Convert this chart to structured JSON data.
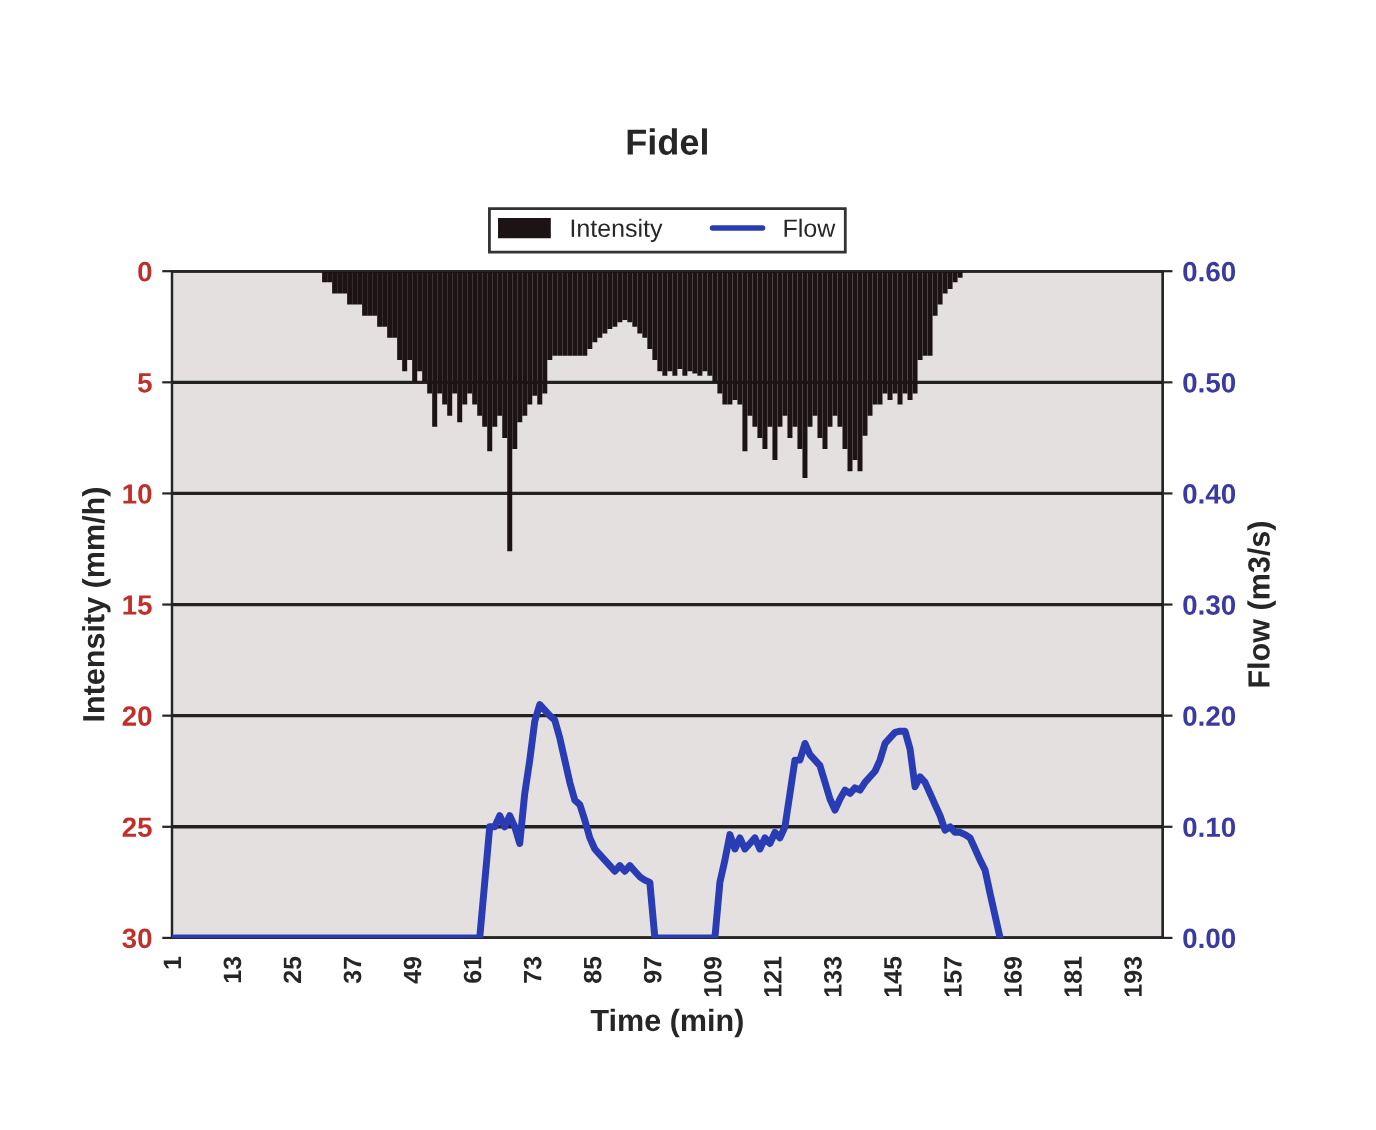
{
  "chart_data": {
    "type": "bar",
    "title": "Fidel",
    "xlabel": "Time (min)",
    "ylabel": "Intensity (mm/h)",
    "y2label": "Flow (m3/s)",
    "categories": [
      "1",
      null,
      null,
      null,
      null,
      null,
      null,
      null,
      null,
      null,
      null,
      null,
      "13",
      null,
      null,
      null,
      null,
      null,
      null,
      null,
      null,
      null,
      null,
      null,
      "25",
      null,
      null,
      null,
      null,
      null,
      null,
      null,
      null,
      null,
      null,
      null,
      "37",
      null,
      null,
      null,
      null,
      null,
      null,
      null,
      null,
      null,
      null,
      null,
      "49",
      null,
      null,
      null,
      null,
      null,
      null,
      null,
      null,
      null,
      null,
      null,
      "61",
      null,
      null,
      null,
      null,
      null,
      null,
      null,
      null,
      null,
      null,
      null,
      "73",
      null,
      null,
      null,
      null,
      null,
      null,
      null,
      null,
      null,
      null,
      null,
      "85",
      null,
      null,
      null,
      null,
      null,
      null,
      null,
      null,
      null,
      null,
      null,
      "97",
      null,
      null,
      null,
      null,
      null,
      null,
      null,
      null,
      null,
      null,
      null,
      "109",
      null,
      null,
      null,
      null,
      null,
      null,
      null,
      null,
      null,
      null,
      null,
      "121",
      null,
      null,
      null,
      null,
      null,
      null,
      null,
      null,
      null,
      null,
      null,
      "133",
      null,
      null,
      null,
      null,
      null,
      null,
      null,
      null,
      null,
      null,
      null,
      "145",
      null,
      null,
      null,
      null,
      null,
      null,
      null,
      null,
      null,
      null,
      null,
      "157",
      null,
      null,
      null,
      null,
      null,
      null,
      null,
      null,
      null,
      null,
      null,
      "169",
      null,
      null,
      null,
      null,
      null,
      null,
      null,
      null,
      null,
      null,
      null,
      "181",
      null,
      null,
      null,
      null,
      null,
      null,
      null,
      null,
      null,
      null,
      null,
      "193",
      null,
      null,
      null,
      null,
      null
    ],
    "series": [
      {
        "name": "Intensity",
        "color": "#1c1414",
        "values": [
          0,
          0,
          0,
          0,
          0,
          0,
          0,
          0,
          0,
          0,
          0,
          0,
          0,
          0,
          0,
          0,
          0,
          0,
          0,
          0,
          0,
          0,
          0,
          0,
          0,
          0,
          0,
          0,
          0,
          0,
          0.5,
          0.5,
          1,
          1,
          1,
          1.5,
          1.5,
          1.5,
          2,
          2,
          2,
          2.5,
          2.5,
          3,
          3,
          4,
          4.5,
          4,
          5,
          4.5,
          5,
          5.5,
          7,
          5.5,
          6,
          6.5,
          5.5,
          6.8,
          6,
          5.5,
          6,
          6.5,
          7,
          8.1,
          7,
          6.5,
          7.5,
          12.6,
          8,
          6.8,
          6.5,
          6,
          5.6,
          6,
          5.5,
          4,
          3.8,
          3.8,
          3.8,
          3.8,
          3.8,
          3.8,
          3.8,
          3.5,
          3.2,
          3,
          2.8,
          2.6,
          2.5,
          2.3,
          2.2,
          2.3,
          2.5,
          2.8,
          3,
          3.5,
          4,
          4.5,
          4.7,
          4.5,
          4.7,
          4.4,
          4.7,
          4.5,
          4.6,
          4.7,
          4.5,
          4.7,
          5,
          5.5,
          6,
          6,
          5.8,
          6,
          8.1,
          6.5,
          7,
          7.5,
          8,
          7,
          8.5,
          7,
          6.5,
          7.5,
          7,
          8,
          9.3,
          7,
          6.5,
          7.5,
          8,
          7,
          6.5,
          7,
          8,
          9,
          8.5,
          9,
          7.4,
          6.5,
          6,
          6,
          5.5,
          5.8,
          5.5,
          6,
          5.5,
          5.8,
          5.5,
          4,
          3.8,
          3.8,
          2,
          1.5,
          1,
          0.8,
          0.5,
          0.3,
          0,
          0,
          0,
          0,
          0,
          0,
          0,
          0,
          0,
          0,
          0,
          0,
          0,
          0,
          0,
          0,
          0,
          0,
          0,
          0,
          0,
          0,
          0,
          0,
          0,
          0,
          0,
          0,
          0,
          0,
          0,
          0,
          0,
          0,
          0,
          0,
          0,
          0,
          0,
          0
        ]
      },
      {
        "name": "Flow",
        "type": "line",
        "axis": "y2",
        "color": "#2a3cb4",
        "values": [
          0,
          0,
          0,
          0,
          0,
          0,
          0,
          0,
          0,
          0,
          0,
          0,
          0,
          0,
          0,
          0,
          0,
          0,
          0,
          0,
          0,
          0,
          0,
          0,
          0,
          0,
          0,
          0,
          0,
          0,
          0,
          0,
          0,
          0,
          0,
          0,
          0,
          0,
          0,
          0,
          0,
          0,
          0,
          0,
          0,
          0,
          0,
          0,
          0,
          0,
          0,
          0,
          0,
          0,
          0,
          0,
          0,
          0,
          0,
          0,
          0,
          0,
          0.05,
          0.1,
          0.1,
          0.11,
          0.1,
          0.11,
          0.1,
          0.085,
          0.13,
          0.16,
          0.195,
          0.21,
          0.205,
          0.2,
          0.196,
          0.18,
          0.16,
          0.14,
          0.124,
          0.12,
          0.106,
          0.09,
          0.08,
          0.075,
          0.07,
          0.065,
          0.06,
          0.065,
          0.06,
          0.065,
          0.06,
          0.055,
          0.052,
          0.05,
          0,
          0,
          0,
          0,
          0,
          0,
          0,
          0,
          0,
          0,
          0,
          0,
          0,
          0.05,
          0.07,
          0.093,
          0.08,
          0.09,
          0.08,
          0.085,
          0.09,
          0.08,
          0.09,
          0.085,
          0.095,
          0.09,
          0.1,
          0.13,
          0.16,
          0.16,
          0.175,
          0.165,
          0.16,
          0.155,
          0.14,
          0.125,
          0.115,
          0.125,
          0.133,
          0.13,
          0.135,
          0.133,
          0.14,
          0.145,
          0.15,
          0.16,
          0.175,
          0.18,
          0.185,
          0.186,
          0.186,
          0.17,
          0.136,
          0.145,
          0.14,
          0.13,
          0.12,
          0.11,
          0.097,
          0.1,
          0.095,
          0.095,
          0.093,
          0.09,
          0.08,
          0.07,
          0.061,
          0.04,
          0.02,
          0,
          null,
          null,
          null,
          null,
          null,
          null,
          null,
          null,
          null,
          null,
          null,
          null,
          null,
          null,
          null,
          null,
          null,
          null,
          null,
          null,
          null,
          null,
          null,
          null,
          null,
          null,
          null,
          null,
          null,
          null,
          null,
          null
        ]
      }
    ],
    "ylim": [
      30,
      0
    ],
    "yticks": [
      0,
      5,
      10,
      15,
      20,
      25,
      30
    ],
    "y2lim": [
      0,
      0.6
    ],
    "y2ticks": [
      {
        "value": 0,
        "label": "0.00"
      },
      {
        "value": 0.1,
        "label": "0.10"
      },
      {
        "value": 0.2,
        "label": "0.20"
      },
      {
        "value": 0.3,
        "label": "0.30"
      },
      {
        "value": 0.4,
        "label": "0.40"
      },
      {
        "value": 0.5,
        "label": "0.50"
      },
      {
        "value": 0.6,
        "label": "0.60"
      }
    ],
    "grid": "y",
    "legend": "top",
    "marker": "none",
    "line_style": "solid"
  }
}
